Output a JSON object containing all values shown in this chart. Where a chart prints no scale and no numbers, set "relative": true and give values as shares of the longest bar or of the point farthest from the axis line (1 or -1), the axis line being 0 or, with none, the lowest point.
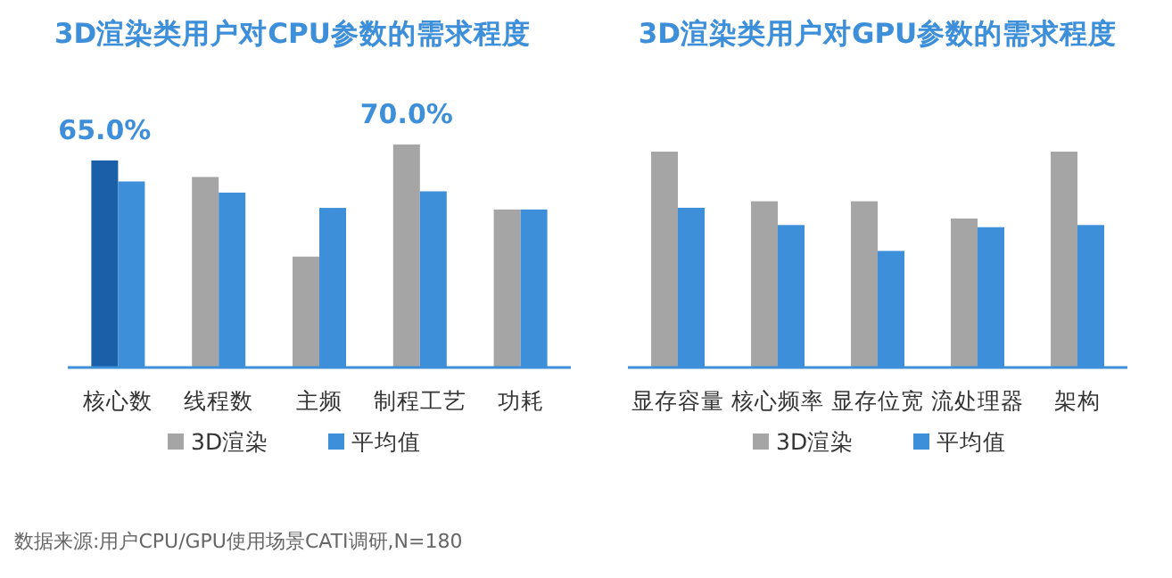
{
  "chart_data": [
    {
      "type": "bar",
      "title": "3D渲染类用户对CPU参数的需求程度",
      "categories": [
        "核心数",
        "线程数",
        "主频",
        "制程工艺",
        "功耗"
      ],
      "series": [
        {
          "name": "3D渲染",
          "color": "#a5a5a5",
          "colors": [
            "#1a5fa8",
            "#a5a5a5",
            "#a5a5a5",
            "#a5a5a5",
            "#a5a5a5"
          ],
          "values": [
            65.0,
            59.8,
            34.8,
            70.0,
            49.6
          ],
          "value_labels": [
            "65.0%",
            null,
            null,
            "70.0%",
            null
          ]
        },
        {
          "name": "平均值",
          "color": "#3d8fd9",
          "values": [
            58.4,
            54.9,
            50.1,
            55.3,
            49.6
          ]
        }
      ],
      "legend": "bottom",
      "annotations": [
        "数据来源:用户CPU/GPU使用场景CATI调研,N=180"
      ]
    },
    {
      "type": "bar",
      "title": "3D渲染类用户对GPU参数的需求程度",
      "categories": [
        "显存容量",
        "核心频率",
        "显存位宽",
        "流处理器",
        "架构"
      ],
      "relative": true,
      "series": [
        {
          "name": "3D渲染",
          "color": "#a5a5a5",
          "values": [
            1.0,
            0.77,
            0.77,
            0.69,
            1.0
          ]
        },
        {
          "name": "平均值",
          "color": "#3d8fd9",
          "values": [
            0.74,
            0.66,
            0.54,
            0.65,
            0.66
          ]
        }
      ],
      "legend": "bottom"
    }
  ]
}
